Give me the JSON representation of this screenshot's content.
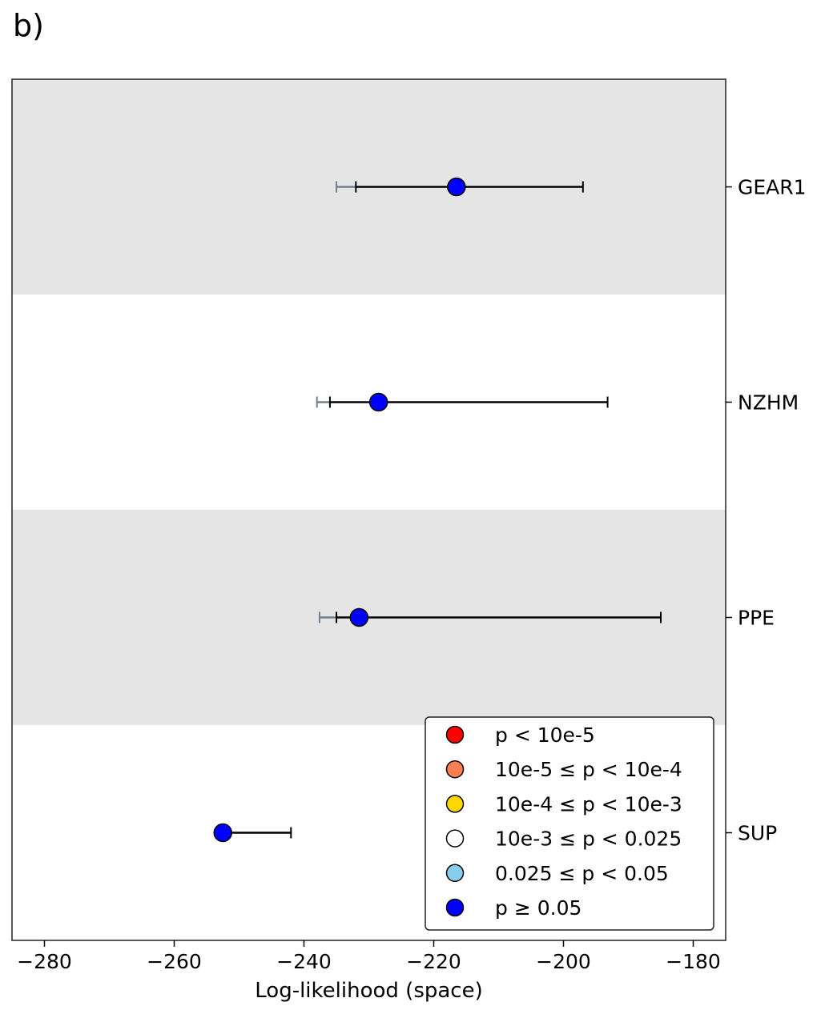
{
  "panel_label": "b)",
  "chart_data": {
    "type": "scatter",
    "title": "",
    "xlabel": "Log-likelihood (space)",
    "ylabel": "",
    "xlim": [
      -285,
      -175
    ],
    "xticks": [
      -280,
      -260,
      -240,
      -220,
      -200,
      -180
    ],
    "xtick_labels": [
      "−280",
      "−260",
      "−240",
      "−220",
      "−200",
      "−180"
    ],
    "categories": [
      "GEAR1",
      "NZHM",
      "PPE",
      "SUP"
    ],
    "band_color": "#e5e5e5",
    "points": [
      {
        "model": "GEAR1",
        "x": -216.5,
        "ci": [
          -232.0,
          -197.0
        ],
        "ref_low": -235.0,
        "color": "#0000ff"
      },
      {
        "model": "NZHM",
        "x": -228.5,
        "ci": [
          -236.0,
          -193.2
        ],
        "ref_low": -238.0,
        "color": "#0000ff"
      },
      {
        "model": "PPE",
        "x": -231.5,
        "ci": [
          -235.0,
          -185.0
        ],
        "ref_low": -237.6,
        "color": "#0000ff"
      },
      {
        "model": "SUP",
        "x": -252.5,
        "ci": [
          -252.5,
          -242.0
        ],
        "ref_low": null,
        "color": "#0000ff"
      }
    ],
    "legend": {
      "placement": "lower-right",
      "entries": [
        {
          "label": "p < 10e-5",
          "color": "#ff0000"
        },
        {
          "label": "10e-5 ≤ p < 10e-4",
          "color": "#ff7f50"
        },
        {
          "label": "10e-4 ≤ p < 10e-3",
          "color": "#ffd700"
        },
        {
          "label": "10e-3 ≤ p < 0.025",
          "color": "#ffffff"
        },
        {
          "label": "0.025 ≤ p < 0.05",
          "color": "#87ceeb"
        },
        {
          "label": "p ≥ 0.05",
          "color": "#0000ff"
        }
      ]
    },
    "ci_color": "#000000",
    "ref_color": "#708090"
  }
}
